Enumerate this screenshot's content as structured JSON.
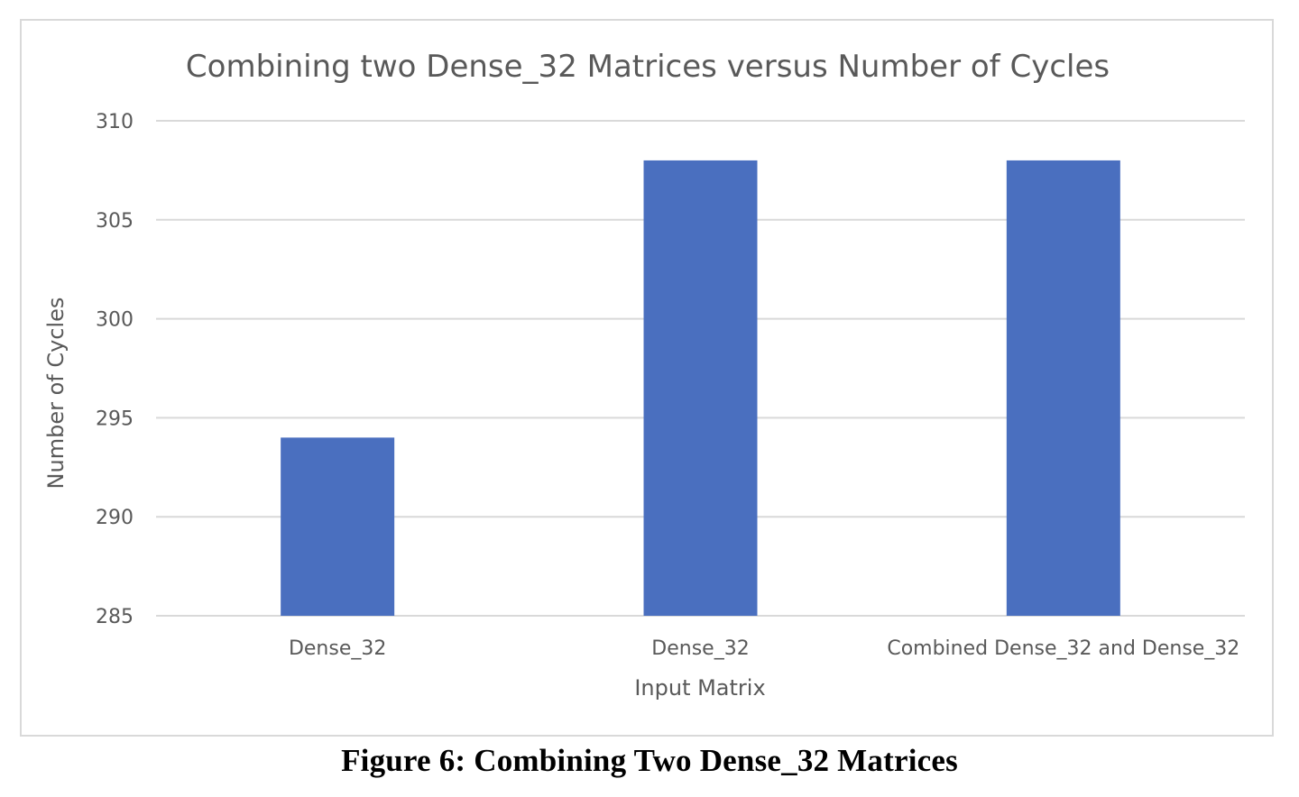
{
  "chart_data": {
    "type": "bar",
    "title": "Combining two Dense_32 Matrices versus Number of Cycles",
    "xlabel": "Input Matrix",
    "ylabel": "Number of Cycles",
    "categories": [
      "Dense_32",
      "Dense_32",
      "Combined Dense_32 and Dense_32"
    ],
    "values": [
      294,
      308,
      308
    ],
    "ylim": [
      285,
      310
    ],
    "yticks": [
      285,
      290,
      295,
      300,
      305,
      310
    ],
    "grid": true,
    "legend": "none",
    "bar_color": "#4A6FBF",
    "grid_color": "#d9d9d9"
  },
  "caption": "Figure 6: Combining Two Dense_32 Matrices"
}
